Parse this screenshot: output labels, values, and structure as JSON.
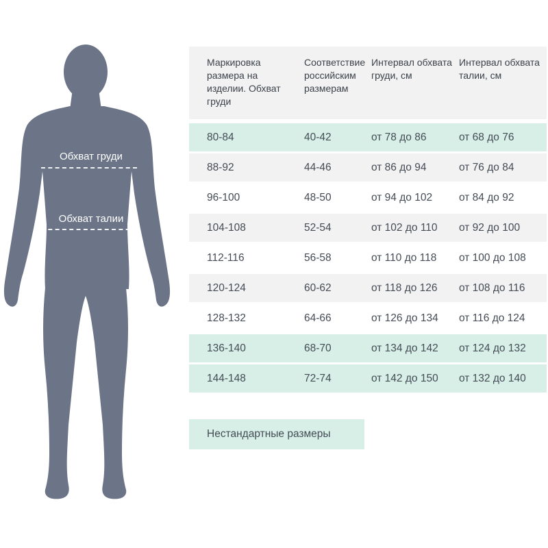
{
  "colors": {
    "silhouette": "#6c7487",
    "highlight_row": "#d7efe6",
    "alt_row": "#f2f2f2",
    "text": "#444b55"
  },
  "figure": {
    "chest_label": "Обхват груди",
    "waist_label": "Обхват талии"
  },
  "table": {
    "headers": [
      "Маркировка размера на изделии. Обхват груди",
      "Соответствие российским размерам",
      "Интервал обхвата груди, см",
      "Интервал обхвата талии, см"
    ],
    "rows": [
      {
        "style": "highlight",
        "cells": [
          "80-84",
          "40-42",
          "от 78 до 86",
          "от 68 до 76"
        ]
      },
      {
        "style": "alt",
        "cells": [
          "88-92",
          "44-46",
          "от 86 до 94",
          "от 76 до 84"
        ]
      },
      {
        "style": "plain",
        "cells": [
          "96-100",
          "48-50",
          "от 94 до 102",
          "от 84 до 92"
        ]
      },
      {
        "style": "alt",
        "cells": [
          "104-108",
          "52-54",
          "от 102 до 110",
          "от 92 до 100"
        ]
      },
      {
        "style": "plain",
        "cells": [
          "112-116",
          "56-58",
          "от 110 до 118",
          "от 100 до 108"
        ]
      },
      {
        "style": "alt",
        "cells": [
          "120-124",
          "60-62",
          "от 118 до 126",
          "от 108 до 116"
        ]
      },
      {
        "style": "plain",
        "cells": [
          "128-132",
          "64-66",
          "от 126 до 134",
          "от 116 до 124"
        ]
      },
      {
        "style": "highlight",
        "cells": [
          "136-140",
          "68-70",
          "от 134 до 142",
          "от 124 до 132"
        ]
      },
      {
        "style": "highlight",
        "cells": [
          "144-148",
          "72-74",
          "от 142 до 150",
          "от 132 до 140"
        ]
      }
    ]
  },
  "legend": {
    "nonstandard_label": "Нестандартные размеры"
  }
}
